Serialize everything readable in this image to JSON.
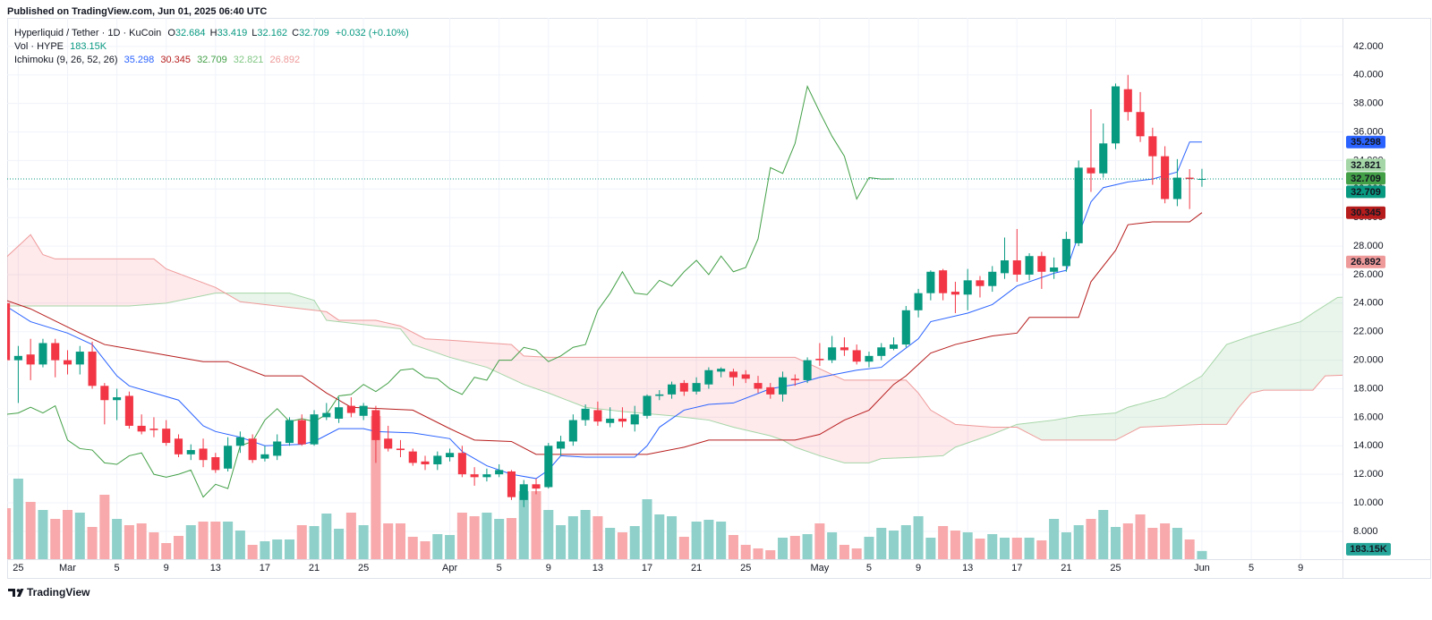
{
  "header": {
    "published": "Published on TradingView.com, Jun 01, 2025 06:40 UTC"
  },
  "footer": {
    "brand": "TradingView"
  },
  "chart_data": {
    "type": "candlestick",
    "symbol": "Hyperliquid / Tether · 1D · KuCoin",
    "ohlc_keys": [
      "O",
      "H",
      "L",
      "C"
    ],
    "change": "+0.032 (+0.10%)",
    "up_color": "#089981",
    "down_color": "#f23645",
    "open": [
      24,
      20,
      20.4,
      19.7,
      21.2,
      20,
      19.7,
      20.6,
      18.2,
      17.2,
      17.5,
      15.4,
      15.2,
      15.2,
      14.5,
      13.4,
      13.8,
      13.2,
      12.4,
      14,
      14.5,
      13.1,
      13.3,
      14.2,
      15.8,
      14.1,
      16,
      15.9,
      16.8,
      16.1,
      16.5,
      14.5,
      13.8,
      13.6,
      12.9,
      12.7,
      13.2,
      13.5,
      12,
      11.8,
      12,
      12.2,
      10.2,
      11.3,
      11.1,
      13.8,
      14.3,
      15.8,
      16.5,
      15.6,
      15.9,
      15.5,
      16.1,
      17.5,
      17.6,
      18.4,
      17.8,
      18.3,
      19.2,
      19.2,
      19,
      18.4,
      18.1,
      17.6,
      18.7,
      18.6,
      20.1,
      20,
      20.9,
      20.7,
      19.9,
      20.3,
      20.8,
      21.1,
      23.5,
      24.7,
      26.3,
      24.8,
      24.6,
      25.6,
      25.2,
      26.1,
      27,
      26,
      27.3,
      26.2,
      26.6,
      28.2,
      33.5,
      33.1,
      35.2,
      39,
      37.4,
      35.7,
      34.3,
      31.3,
      32.8,
      32.684
    ],
    "high": [
      24.5,
      21,
      21.5,
      21.5,
      21.5,
      20.7,
      21,
      21.3,
      18.4,
      18,
      17.8,
      16.2,
      16,
      15.8,
      14.8,
      14.1,
      14.5,
      13.5,
      14.6,
      15,
      14.8,
      14,
      14.8,
      16,
      16.2,
      16.5,
      17,
      17.4,
      17.4,
      17,
      16.8,
      15.4,
      14.4,
      13.8,
      13.3,
      13.6,
      13.8,
      14,
      12.5,
      12.4,
      12.7,
      12.3,
      11.6,
      11.7,
      14.2,
      14.7,
      16.2,
      16.9,
      17.1,
      16.7,
      16.7,
      16.8,
      17.6,
      17.9,
      18.5,
      18.6,
      18.8,
      19.5,
      19.5,
      19.4,
      19.3,
      18.9,
      18.4,
      19.2,
      19,
      20.2,
      21.2,
      21.7,
      21.6,
      21.1,
      20.6,
      21.2,
      21.6,
      23.8,
      25,
      26.3,
      26.4,
      25.5,
      26.4,
      25.9,
      26.6,
      28.6,
      29.2,
      27.5,
      27.6,
      27.2,
      29,
      34,
      37.6,
      36.6,
      39.4,
      40,
      38.8,
      36.3,
      35,
      34.1,
      33.4,
      33.419
    ],
    "low": [
      19.5,
      17,
      18.6,
      19.5,
      18.8,
      19,
      19,
      18,
      15.5,
      15.8,
      15.2,
      14.8,
      14.6,
      14,
      13.2,
      13,
      12.5,
      12.1,
      12.2,
      13.5,
      12.8,
      12.9,
      13,
      14,
      14,
      14,
      15.8,
      15.6,
      16,
      15.8,
      12.8,
      13.6,
      13.2,
      12.6,
      12.3,
      12.3,
      12.9,
      11.8,
      11.2,
      11.5,
      11.8,
      10.2,
      9.7,
      10.6,
      11,
      13.3,
      14,
      15.4,
      15.4,
      15.3,
      15.3,
      15,
      15.9,
      17.2,
      17.3,
      17.5,
      17.6,
      18,
      18.8,
      18.2,
      18.4,
      17.7,
      17.3,
      17.1,
      18.2,
      18.4,
      19.6,
      19.8,
      20.3,
      19.7,
      19.5,
      20,
      20.7,
      20.9,
      23,
      24.2,
      24.2,
      23.3,
      23.5,
      24.4,
      24.8,
      25.7,
      25.5,
      25.6,
      25,
      25.7,
      26.2,
      28,
      31.8,
      32.8,
      34.8,
      36.8,
      35.3,
      32.3,
      31,
      30.8,
      30.6,
      32.162
    ],
    "close": [
      20,
      20.3,
      19.7,
      21.2,
      20,
      19.7,
      20.6,
      18.2,
      17.2,
      17.4,
      15.4,
      15,
      15.1,
      14.2,
      13.4,
      13.7,
      13,
      12.3,
      14,
      14.6,
      13,
      13.4,
      14.3,
      15.8,
      14.1,
      16.2,
      16.3,
      16.7,
      16.3,
      16.8,
      14.4,
      13.8,
      13.7,
      12.8,
      12.7,
      13.3,
      13.5,
      12,
      11.8,
      12,
      12.3,
      10.4,
      11.3,
      11,
      14,
      14.3,
      15.8,
      16.6,
      15.7,
      15.9,
      15.7,
      16.2,
      17.5,
      17.6,
      18.3,
      17.8,
      18.4,
      19.3,
      19.4,
      18.8,
      18.7,
      18,
      17.6,
      18.8,
      18.6,
      20,
      20,
      20.9,
      20.7,
      19.9,
      20.3,
      20.9,
      21.1,
      23.5,
      24.7,
      26.2,
      24.7,
      24.6,
      25.6,
      25.2,
      26.2,
      27,
      26,
      27.3,
      26.2,
      26.5,
      28.5,
      33.5,
      33.1,
      35.2,
      39.2,
      37.4,
      35.7,
      34.3,
      31.3,
      32.8,
      32.7,
      32.709
    ],
    "ylim": [
      6.05,
      44
    ],
    "yticks": [
      {
        "value": 8,
        "label": "8.000"
      },
      {
        "value": 10,
        "label": "10.000"
      },
      {
        "value": 12,
        "label": "12.000"
      },
      {
        "value": 14,
        "label": "14.000"
      },
      {
        "value": 16,
        "label": "16.000"
      },
      {
        "value": 18,
        "label": "18.000"
      },
      {
        "value": 20,
        "label": "20.000"
      },
      {
        "value": 22,
        "label": "22.000"
      },
      {
        "value": 24,
        "label": "24.000"
      },
      {
        "value": 26,
        "label": "26.000"
      },
      {
        "value": 28,
        "label": "28.000"
      },
      {
        "value": 30,
        "label": "30.000"
      },
      {
        "value": 32,
        "label": "32.000"
      },
      {
        "value": 34,
        "label": "34.000"
      },
      {
        "value": 36,
        "label": "36.000"
      },
      {
        "value": 38,
        "label": "38.000"
      },
      {
        "value": 40,
        "label": "40.000"
      },
      {
        "value": 42,
        "label": "42.000"
      }
    ],
    "xlim": [
      0.1,
      108.4
    ],
    "xticks": [
      {
        "value": 1,
        "label": "25"
      },
      {
        "value": 5,
        "label": "Mar"
      },
      {
        "value": 9,
        "label": "5"
      },
      {
        "value": 13,
        "label": "9"
      },
      {
        "value": 17,
        "label": "13"
      },
      {
        "value": 21,
        "label": "17"
      },
      {
        "value": 25,
        "label": "21"
      },
      {
        "value": 29,
        "label": "25"
      },
      {
        "value": 36,
        "label": "Apr"
      },
      {
        "value": 40,
        "label": "5"
      },
      {
        "value": 44,
        "label": "9"
      },
      {
        "value": 48,
        "label": "13"
      },
      {
        "value": 52,
        "label": "17"
      },
      {
        "value": 56,
        "label": "21"
      },
      {
        "value": 60,
        "label": "25"
      },
      {
        "value": 66,
        "label": "May"
      },
      {
        "value": 70,
        "label": "5"
      },
      {
        "value": 74,
        "label": "9"
      },
      {
        "value": 78,
        "label": "13"
      },
      {
        "value": 82,
        "label": "17"
      },
      {
        "value": 86,
        "label": "21"
      },
      {
        "value": 90,
        "label": "25"
      },
      {
        "value": 97,
        "label": "Jun"
      },
      {
        "value": 101,
        "label": "5"
      },
      {
        "value": 105,
        "label": "9"
      }
    ],
    "grid": true,
    "last_price_line": true,
    "volume": {
      "title": "Vol · HYPE",
      "value_label": "183.15K",
      "ylim": [
        0,
        12100000
      ],
      "up_color": "#8fd1ca",
      "down_color": "#f7a9ab",
      "values": [
        1140000,
        1800000,
        1280000,
        1100000,
        900000,
        1100000,
        1040000,
        720000,
        1440000,
        900000,
        760000,
        800000,
        600000,
        360000,
        520000,
        760000,
        840000,
        840000,
        840000,
        640000,
        320000,
        400000,
        440000,
        440000,
        760000,
        740000,
        1020000,
        680000,
        1040000,
        760000,
        3200000,
        800000,
        800000,
        500000,
        400000,
        560000,
        540000,
        1040000,
        960000,
        1040000,
        900000,
        920000,
        1520000,
        1520000,
        1100000,
        760000,
        960000,
        1100000,
        960000,
        700000,
        600000,
        740000,
        1340000,
        1000000,
        960000,
        500000,
        840000,
        880000,
        840000,
        540000,
        320000,
        240000,
        200000,
        480000,
        520000,
        560000,
        800000,
        600000,
        320000,
        240000,
        500000,
        700000,
        640000,
        760000,
        960000,
        480000,
        740000,
        640000,
        600000,
        460000,
        560000,
        480000,
        480000,
        480000,
        420000,
        900000,
        600000,
        760000,
        900000,
        1100000,
        720000,
        800000,
        1000000,
        700000,
        800000,
        700000,
        440000,
        183150
      ]
    },
    "ichimoku": {
      "title": "Ichimoku (9, 26, 52, 26)",
      "cloud_up_color": "rgba(76,175,80,0.12)",
      "cloud_down_color": "rgba(242,54,69,0.11)",
      "conversion": {
        "color": "#2962ff",
        "legend_value": 35.298,
        "x": [
          0,
          2,
          5,
          7,
          8,
          9,
          10,
          12,
          14,
          16,
          17,
          19,
          21,
          24,
          25,
          27,
          29,
          30,
          33,
          36,
          37,
          39,
          41,
          43,
          44,
          45,
          47,
          51,
          52,
          53,
          55,
          57,
          59,
          62,
          64,
          66,
          69,
          71,
          72,
          74,
          75,
          78,
          80,
          82,
          85,
          86,
          87,
          88,
          89,
          91,
          93,
          95,
          96,
          97
        ],
        "values": [
          23.8,
          22.7,
          21.9,
          21.1,
          20,
          18.9,
          18.2,
          17.7,
          17.2,
          15.4,
          15,
          14.6,
          14,
          14.1,
          14.3,
          15.2,
          15.2,
          15,
          14.9,
          14.5,
          13.6,
          12.6,
          12,
          11.7,
          12.3,
          13.3,
          13.2,
          13.2,
          14,
          15.3,
          16.5,
          16.9,
          17,
          18,
          18.3,
          18.8,
          19.3,
          19.5,
          20.2,
          21.5,
          22.7,
          23.3,
          23.9,
          25.2,
          26.1,
          26.3,
          28.8,
          31.1,
          32.1,
          32.5,
          32.7,
          33.2,
          35.298,
          35.298
        ]
      },
      "base": {
        "color": "#b71c1c",
        "legend_value": 30.345,
        "x": [
          0,
          2,
          6,
          8,
          12,
          16,
          18,
          21,
          24,
          26,
          28,
          33,
          36,
          38,
          41,
          43,
          52,
          55,
          57,
          64,
          66,
          68,
          70,
          72,
          73,
          75,
          77,
          80,
          82,
          83,
          87,
          88,
          90,
          91,
          93,
          96,
          97
        ],
        "values": [
          24.2,
          23.6,
          21.9,
          21.1,
          20.5,
          19.9,
          19.9,
          18.9,
          18.9,
          17.7,
          16.7,
          16.5,
          15.2,
          14.4,
          14.3,
          13.4,
          13.4,
          13.9,
          14.4,
          14.4,
          14.8,
          15.8,
          16.5,
          18.3,
          18.9,
          20.5,
          21.1,
          21.7,
          21.9,
          23,
          23,
          25.5,
          27.7,
          29.5,
          29.7,
          29.7,
          30.345
        ]
      },
      "lagging": {
        "color": "#43a047",
        "legend_value": 32.709,
        "x": [
          0,
          1,
          2,
          3,
          4,
          5,
          6,
          7,
          8,
          9,
          10,
          11,
          12,
          13,
          14,
          15,
          16,
          17,
          18,
          19,
          20,
          21,
          22,
          23,
          24,
          25,
          26,
          27,
          28,
          29,
          30,
          31,
          32,
          33,
          34,
          35,
          36,
          37,
          38,
          39,
          40,
          41,
          42,
          43,
          44,
          45,
          46,
          47,
          48,
          49,
          50,
          51,
          52,
          53,
          54,
          55,
          56,
          57,
          58,
          59,
          60,
          61,
          62,
          63,
          64,
          65,
          66,
          67,
          68,
          69,
          70,
          71,
          72
        ],
        "values": [
          16.2,
          16.3,
          16.7,
          16.3,
          16.8,
          14.4,
          13.8,
          13.7,
          12.8,
          12.7,
          13.3,
          13.5,
          12,
          11.8,
          12,
          12.3,
          10.4,
          11.3,
          11,
          14,
          14.3,
          15.8,
          16.6,
          15.7,
          15.9,
          15.7,
          16.2,
          17.5,
          17.6,
          18.3,
          17.8,
          18.4,
          19.3,
          19.4,
          18.8,
          18.7,
          18,
          17.6,
          18.8,
          18.6,
          20,
          20,
          20.9,
          20.7,
          19.9,
          20.3,
          20.9,
          21.1,
          23.5,
          24.7,
          26.2,
          24.7,
          24.6,
          25.6,
          25.2,
          26.2,
          27,
          26,
          27.3,
          26.2,
          26.5,
          28.5,
          33.5,
          33.1,
          35.2,
          39.2,
          37.4,
          35.7,
          34.3,
          31.3,
          32.8,
          32.7,
          32.709
        ]
      },
      "lead_a": {
        "color": "#a5d6a7",
        "legend_value": 32.821,
        "x": [
          0,
          10,
          13,
          17,
          23,
          25,
          26,
          30,
          32,
          33,
          36,
          39,
          42,
          44,
          47,
          50,
          54,
          57,
          59,
          62,
          63,
          64,
          66,
          68,
          70,
          71,
          74,
          76,
          77,
          80,
          82,
          85,
          87,
          90,
          91,
          94,
          97,
          99,
          101,
          103,
          105,
          106,
          108,
          110
        ],
        "values": [
          23.8,
          23.8,
          24,
          24.7,
          24.7,
          24.2,
          22.8,
          22.4,
          22.2,
          21.1,
          20.2,
          19.5,
          18.3,
          17.7,
          16.7,
          16.4,
          16.1,
          15.8,
          15.3,
          14.7,
          14.4,
          13.9,
          13.3,
          12.8,
          12.8,
          13.1,
          13.2,
          13.3,
          13.9,
          14.8,
          15.5,
          15.8,
          16.1,
          16.3,
          16.7,
          17.4,
          18.9,
          21.1,
          21.7,
          22.2,
          22.7,
          23.3,
          24.4,
          24.5
        ]
      },
      "lead_b": {
        "color": "#ef9a9a",
        "legend_value": 26.892,
        "x": [
          0,
          1,
          2,
          3,
          4,
          12,
          13,
          17,
          19,
          26,
          27,
          30,
          32,
          34,
          36,
          41,
          42,
          44,
          64,
          66,
          68,
          73,
          74,
          75,
          77,
          80,
          82,
          84,
          90,
          92,
          97,
          99,
          100,
          101,
          102,
          106,
          107,
          110
        ],
        "values": [
          27.2,
          28,
          28.8,
          27.4,
          27.1,
          27.1,
          26.4,
          25.1,
          24.1,
          23.4,
          22.8,
          22.8,
          22.4,
          21.5,
          21.4,
          21.1,
          20.3,
          20.2,
          20.2,
          19.4,
          18.6,
          18.6,
          17.7,
          16.5,
          15.5,
          15.3,
          15.3,
          14.4,
          14.4,
          15.3,
          15.5,
          15.5,
          16.7,
          17.7,
          17.9,
          17.9,
          18.9,
          19
        ]
      }
    }
  }
}
